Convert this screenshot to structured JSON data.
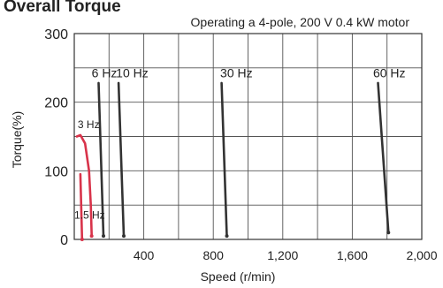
{
  "chart_data": {
    "type": "line",
    "title": "",
    "title_partial": "Overall Torque",
    "subtitle": "Operating a 4-pole, 200 V 0.4 kW motor",
    "xlabel": "Speed (r/min)",
    "ylabel": "Torque(%)",
    "xlim": [
      0,
      2000
    ],
    "ylim": [
      0,
      300
    ],
    "x_ticks": [
      0,
      400,
      800,
      1200,
      1600,
      2000
    ],
    "x_tick_labels": [
      "",
      "400",
      "800",
      "1,200",
      "1,600",
      "2,000"
    ],
    "y_ticks": [
      0,
      100,
      200,
      300
    ],
    "y_tick_labels": [
      "0",
      "100",
      "200",
      "300"
    ],
    "grid": true,
    "series": [
      {
        "name": "1.5 Hz",
        "color": "#d8334a",
        "x": [
          35,
          45
        ],
        "y": [
          95,
          0
        ]
      },
      {
        "name": "3 Hz",
        "color": "#d8334a",
        "x": [
          15,
          35,
          62,
          85,
          95,
          100
        ],
        "y": [
          150,
          152,
          140,
          100,
          50,
          5
        ]
      },
      {
        "name": "6 Hz",
        "color": "#333333",
        "x": [
          140,
          168
        ],
        "y": [
          228,
          5
        ]
      },
      {
        "name": "10 Hz",
        "color": "#333333",
        "x": [
          255,
          285
        ],
        "y": [
          228,
          5
        ]
      },
      {
        "name": "30 Hz",
        "color": "#333333",
        "x": [
          848,
          878
        ],
        "y": [
          228,
          5
        ]
      },
      {
        "name": "60 Hz",
        "color": "#333333",
        "x": [
          1748,
          1808
        ],
        "y": [
          228,
          10
        ]
      }
    ],
    "series_labels": [
      {
        "text": "6 Hz",
        "x": 100,
        "y": 236
      },
      {
        "text": "10 Hz",
        "x": 240,
        "y": 236
      },
      {
        "text": "30 Hz",
        "x": 840,
        "y": 236
      },
      {
        "text": "60 Hz",
        "x": 1720,
        "y": 236
      },
      {
        "text": "3 Hz",
        "x": 20,
        "y": 162
      },
      {
        "text": "1.5 Hz",
        "x": 0,
        "y": 30
      }
    ]
  }
}
